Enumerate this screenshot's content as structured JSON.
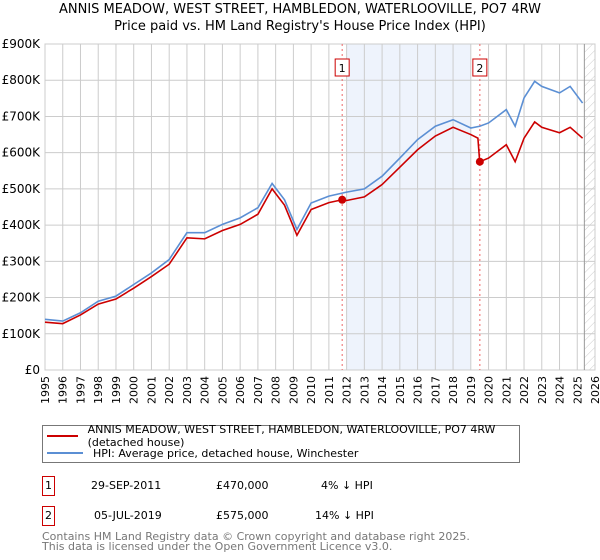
{
  "title": "ANNIS MEADOW, WEST STREET, HAMBLEDON, WATERLOOVILLE, PO7 4RW",
  "subtitle": "Price paid vs. HM Land Registry's House Price Index (HPI)",
  "colors": {
    "price": "#cc0000",
    "hpi": "#5b8fd4",
    "shade": "#eef3fc"
  },
  "chart_data": {
    "type": "line",
    "title": "ANNIS MEADOW, WEST STREET, HAMBLEDON, WATERLOOVILLE, PO7 4RW",
    "xlim": [
      1995,
      2026
    ],
    "ylim": [
      0,
      900000
    ],
    "grid": true,
    "x_ticks": [
      "1995",
      "1996",
      "1997",
      "1998",
      "1999",
      "2000",
      "2001",
      "2002",
      "2003",
      "2004",
      "2005",
      "2006",
      "2007",
      "2008",
      "2009",
      "2010",
      "2011",
      "2012",
      "2013",
      "2014",
      "2015",
      "2016",
      "2017",
      "2018",
      "2019",
      "2020",
      "2021",
      "2022",
      "2023",
      "2024",
      "2025",
      "2026"
    ],
    "y_ticks": [
      {
        "value": 0,
        "label": "£0"
      },
      {
        "value": 100000,
        "label": "£100K"
      },
      {
        "value": 200000,
        "label": "£200K"
      },
      {
        "value": 300000,
        "label": "£300K"
      },
      {
        "value": 400000,
        "label": "£400K"
      },
      {
        "value": 500000,
        "label": "£500K"
      },
      {
        "value": 600000,
        "label": "£600K"
      },
      {
        "value": 700000,
        "label": "£700K"
      },
      {
        "value": 800000,
        "label": "£800K"
      },
      {
        "value": 900000,
        "label": "£900K"
      }
    ],
    "shaded_range": [
      2012,
      2019
    ],
    "hatched_from": 2025.4,
    "series": [
      {
        "name": "HPI",
        "x": [
          1995,
          1996,
          1997,
          1998,
          1999,
          2000,
          2001,
          2002,
          2003,
          2004,
          2005,
          2006,
          2007,
          2007.8,
          2008.5,
          2009.2,
          2010,
          2011,
          2012,
          2013,
          2014,
          2015,
          2016,
          2017,
          2018,
          2019,
          2019.5,
          2020,
          2021,
          2021.5,
          2022,
          2022.6,
          2023,
          2024,
          2024.6,
          2025.3
        ],
        "values": [
          140000,
          135000,
          158000,
          190000,
          204000,
          236000,
          268000,
          305000,
          379000,
          379000,
          402000,
          420000,
          448000,
          515000,
          470000,
          388000,
          461000,
          480000,
          491000,
          500000,
          535000,
          585000,
          636000,
          673000,
          691000,
          668000,
          673000,
          682000,
          719000,
          673000,
          751000,
          797000,
          783000,
          765000,
          783000,
          737000
        ]
      },
      {
        "name": "Price",
        "x": [
          1995,
          1996,
          1997,
          1998,
          1999,
          2000,
          2001,
          2002,
          2003,
          2004,
          2005,
          2006,
          2007,
          2007.8,
          2008.5,
          2009.2,
          2010,
          2011,
          2011.75,
          2012,
          2013,
          2014,
          2015,
          2016,
          2017,
          2018,
          2019,
          2019.4,
          2019.5,
          2020,
          2021,
          2021.5,
          2022,
          2022.6,
          2023,
          2024,
          2024.6,
          2025.3
        ],
        "values": [
          132000,
          128000,
          152000,
          182000,
          196000,
          226000,
          258000,
          292000,
          365000,
          362000,
          385000,
          402000,
          430000,
          500000,
          455000,
          372000,
          443000,
          462000,
          470000,
          468000,
          478000,
          512000,
          560000,
          608000,
          646000,
          670000,
          650000,
          640000,
          575000,
          585000,
          622000,
          575000,
          640000,
          685000,
          670000,
          655000,
          670000,
          640000
        ]
      }
    ],
    "sales": [
      {
        "id": "1",
        "x": 2011.75,
        "value": 470000
      },
      {
        "id": "2",
        "x": 2019.51,
        "value": 575000
      }
    ]
  },
  "legend": {
    "price_label": "ANNIS MEADOW, WEST STREET, HAMBLEDON, WATERLOOVILLE, PO7 4RW (detached house)",
    "hpi_label": "HPI: Average price, detached house, Winchester"
  },
  "transactions": [
    {
      "num": "1",
      "date": "29-SEP-2011",
      "price": "£470,000",
      "diff": "4% ↓ HPI"
    },
    {
      "num": "2",
      "date": "05-JUL-2019",
      "price": "£575,000",
      "diff": "14% ↓ HPI"
    }
  ],
  "footer": {
    "line1": "Contains HM Land Registry data © Crown copyright and database right 2025.",
    "line2": "This data is licensed under the Open Government Licence v3.0."
  }
}
